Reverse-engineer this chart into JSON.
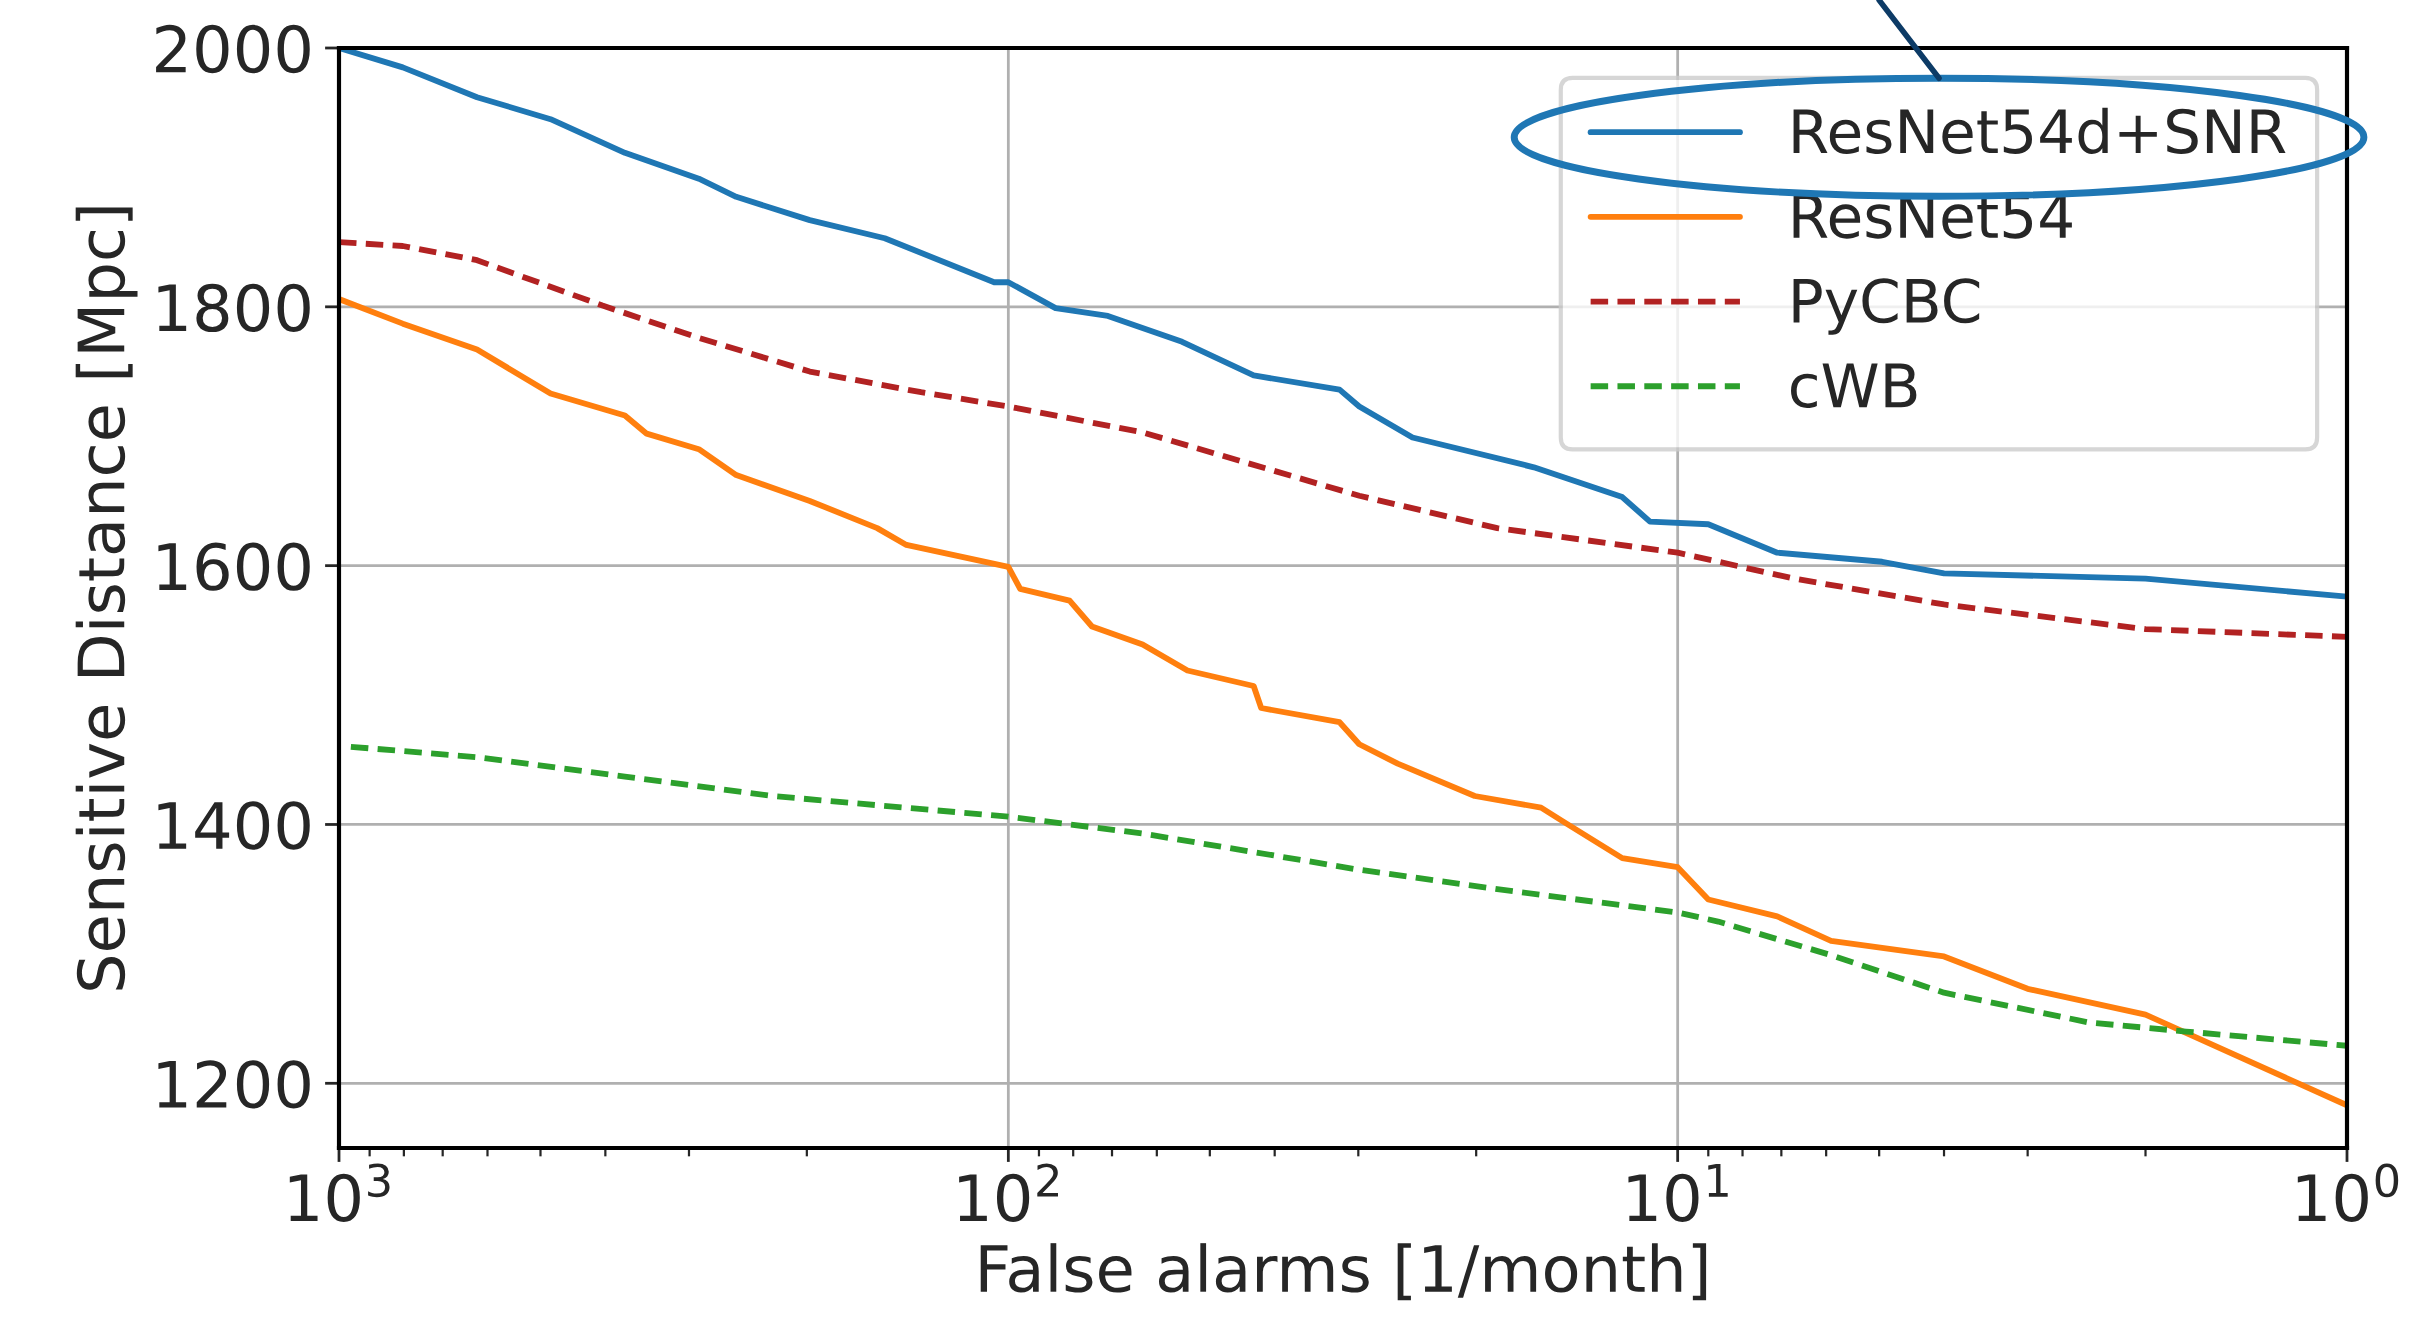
{
  "chart_data": {
    "type": "line",
    "xlabel": "False alarms [1/month]",
    "ylabel": "Sensitive Distance [Mpc]",
    "log": "x",
    "xlim": [
      1000,
      1
    ],
    "ylim": [
      1150,
      2000
    ],
    "xticks": [
      {
        "value": 1000,
        "label": "10$^{3}$"
      },
      {
        "value": 100,
        "label": "10$^{2}$"
      },
      {
        "value": 10,
        "label": "10$^{1}$"
      },
      {
        "value": 1,
        "label": "10$^{0}$"
      }
    ],
    "yticks": [
      1200,
      1400,
      1600,
      1800,
      2000
    ],
    "grid": true,
    "legend": "top right",
    "series": [
      {
        "name": "ResNet54d+SNR",
        "color": "#1f77b4",
        "line_style": "solid",
        "x": [
          1000,
          803,
          622,
          483,
          374,
          290,
          255,
          198,
          153,
          105,
          100,
          85,
          71,
          55,
          43,
          32,
          29.9,
          24.9,
          16.4,
          12.1,
          11.0,
          9.0,
          7.1,
          4.95,
          4.0,
          2.0,
          1
        ],
        "values": [
          2000,
          1985,
          1962,
          1945,
          1919,
          1899,
          1885,
          1867,
          1853,
          1819,
          1819,
          1799,
          1793,
          1773,
          1747,
          1736,
          1723,
          1699,
          1676,
          1653,
          1634,
          1632,
          1610,
          1603,
          1594,
          1590,
          1576
        ]
      },
      {
        "name": "ResNet54",
        "color": "#ff7f0e",
        "line_style": "solid",
        "x": [
          1000,
          803,
          622,
          483,
          374,
          347,
          290,
          255,
          198,
          157,
          142,
          100,
          96,
          81,
          75,
          63,
          54,
          43,
          41.9,
          32,
          29.9,
          26.2,
          20.1,
          16.0,
          14.8,
          12.1,
          10,
          9.0,
          7.1,
          5.9,
          4.0,
          3.0,
          2.0,
          1
        ],
        "values": [
          1806,
          1787,
          1767,
          1733,
          1716,
          1702,
          1690,
          1670,
          1650,
          1629,
          1616,
          1599,
          1582,
          1573,
          1553,
          1539,
          1519,
          1507,
          1490,
          1479,
          1462,
          1447,
          1422,
          1413,
          1402,
          1374,
          1367,
          1342,
          1329,
          1310,
          1298,
          1273,
          1253,
          1183
        ]
      },
      {
        "name": "PyCBC",
        "color": "#b22222",
        "line_style": "dashed",
        "x": [
          1000,
          803,
          622,
          404,
          290,
          198,
          135,
          100,
          63,
          29.9,
          18.6,
          10,
          6.7,
          4.0,
          2.0,
          1
        ],
        "values": [
          1850,
          1847,
          1836,
          1801,
          1776,
          1750,
          1734,
          1723,
          1703,
          1654,
          1629,
          1610,
          1590,
          1570,
          1551,
          1545
        ]
      },
      {
        "name": "cWB",
        "color": "#2ca02c",
        "line_style": "dashed",
        "x": [
          960,
          622,
          374,
          225,
          100,
          63,
          29.9,
          18.6,
          10,
          8.7,
          5.9,
          4.0,
          2.43,
          1.74,
          1
        ],
        "values": [
          1460,
          1452,
          1437,
          1422,
          1406,
          1393,
          1365,
          1350,
          1332,
          1325,
          1299,
          1270,
          1247,
          1240,
          1229
        ]
      }
    ]
  }
}
